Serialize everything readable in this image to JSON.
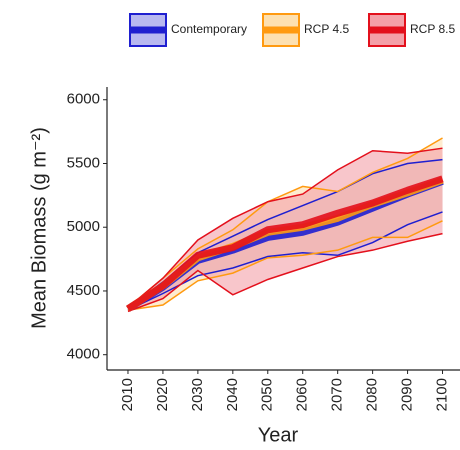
{
  "chart_data": {
    "type": "line-band",
    "x_label": "Year",
    "y_label": "Mean Biomass (g m⁻²)",
    "x": [
      2010,
      2020,
      2030,
      2040,
      2050,
      2060,
      2070,
      2080,
      2090,
      2100
    ],
    "xlim": [
      2004,
      2105
    ],
    "xticks": [
      2010,
      2020,
      2030,
      2040,
      2050,
      2060,
      2070,
      2080,
      2090,
      2100
    ],
    "ylim": [
      3880,
      6100
    ],
    "yticks": [
      4000,
      4500,
      5000,
      5500,
      6000
    ],
    "series": [
      {
        "name": "Contemporary",
        "color": "#1f1fd0",
        "fill": "#b8b8f0",
        "values": [
          4360,
          4530,
          4740,
          4820,
          4920,
          4960,
          5040,
          5150,
          5260,
          5360
        ],
        "upper": [
          4370,
          4570,
          4800,
          4930,
          5060,
          5170,
          5280,
          5420,
          5500,
          5530
        ],
        "lower": [
          4350,
          4480,
          4620,
          4680,
          4770,
          4800,
          4780,
          4880,
          5020,
          5120
        ]
      },
      {
        "name": "RCP 4.5",
        "color": "#ff9a10",
        "fill": "#fde0b0",
        "values": [
          4360,
          4540,
          4760,
          4850,
          4960,
          5000,
          5070,
          5180,
          5270,
          5370
        ],
        "upper": [
          4370,
          4600,
          4830,
          4980,
          5200,
          5320,
          5280,
          5430,
          5540,
          5700
        ],
        "lower": [
          4350,
          4390,
          4580,
          4640,
          4760,
          4780,
          4820,
          4920,
          4920,
          5050
        ]
      },
      {
        "name": "RCP 8.5",
        "color": "#e3101c",
        "fill": "#f4a0a8",
        "values": [
          4360,
          4540,
          4780,
          4840,
          4980,
          5020,
          5110,
          5190,
          5290,
          5380
        ],
        "upper": [
          4370,
          4600,
          4900,
          5070,
          5200,
          5260,
          5450,
          5600,
          5580,
          5620
        ],
        "lower": [
          4340,
          4440,
          4660,
          4470,
          4590,
          4680,
          4770,
          4820,
          4890,
          4950
        ]
      }
    ]
  }
}
